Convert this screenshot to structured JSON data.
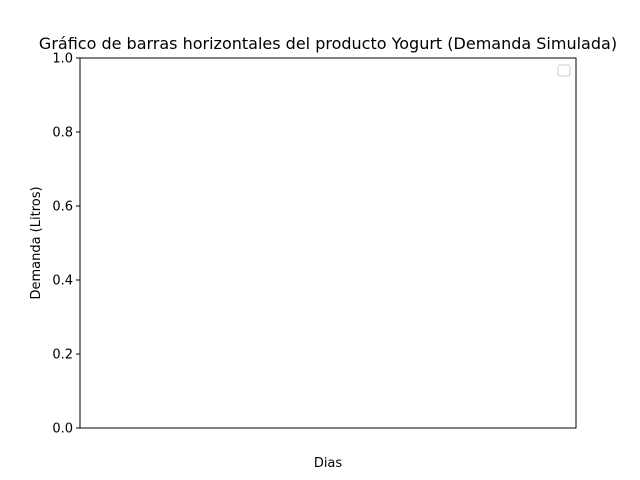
{
  "chart_data": {
    "type": "bar",
    "orientation": "horizontal",
    "title": "Gráfico de barras horizontales del producto Yogurt (Demanda Simulada)",
    "xlabel": "Dias",
    "ylabel": "Demanda (Litros)",
    "ylim": [
      0,
      1
    ],
    "yticks": [
      "0.0",
      "0.2",
      "0.4",
      "0.6",
      "0.8",
      "1.0"
    ],
    "xticks": [],
    "categories": [],
    "values": [],
    "series": [],
    "grid": false,
    "legend": {
      "placement": "top-right",
      "entries": []
    },
    "colors": {
      "axes": "#000000",
      "legend_border": "#cccccc",
      "background": "#ffffff"
    }
  }
}
